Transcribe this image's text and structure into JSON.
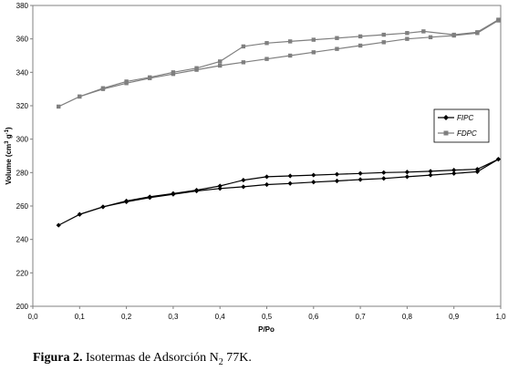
{
  "chart_data": {
    "type": "line",
    "xlabel": "P/Po",
    "ylabel_main": "Volume (cm",
    "ylabel_sup1": "3",
    "ylabel_mid": " g",
    "ylabel_sup2": "-1",
    "ylabel_end": ")",
    "xlim": [
      0,
      1
    ],
    "ylim": [
      200,
      380
    ],
    "x_ticks": [
      "0,0",
      "0,1",
      "0,2",
      "0,3",
      "0,4",
      "0,5",
      "0,6",
      "0,7",
      "0,8",
      "0,9",
      "1,0"
    ],
    "y_ticks": [
      "200",
      "220",
      "240",
      "260",
      "280",
      "300",
      "320",
      "340",
      "360",
      "380"
    ],
    "grid": false,
    "legend_position": "right-middle",
    "series": [
      {
        "name": "FIPC",
        "color": "#000000",
        "marker": "diamond",
        "adsorption": [
          [
            0.055,
            248.5
          ],
          [
            0.1,
            255
          ],
          [
            0.15,
            259.5
          ],
          [
            0.2,
            262.5
          ],
          [
            0.25,
            265
          ],
          [
            0.3,
            267
          ],
          [
            0.35,
            269
          ],
          [
            0.4,
            270.5
          ],
          [
            0.45,
            271.5
          ],
          [
            0.5,
            272.8
          ],
          [
            0.55,
            273.5
          ],
          [
            0.6,
            274.3
          ],
          [
            0.65,
            275
          ],
          [
            0.7,
            275.8
          ],
          [
            0.75,
            276.5
          ],
          [
            0.8,
            277.5
          ],
          [
            0.85,
            278.5
          ],
          [
            0.9,
            279.5
          ],
          [
            0.95,
            280.5
          ],
          [
            0.995,
            288
          ]
        ],
        "desorption": [
          [
            0.995,
            288
          ],
          [
            0.95,
            282
          ],
          [
            0.9,
            281.5
          ],
          [
            0.85,
            280.8
          ],
          [
            0.8,
            280.3
          ],
          [
            0.75,
            280
          ],
          [
            0.7,
            279.5
          ],
          [
            0.65,
            279
          ],
          [
            0.6,
            278.5
          ],
          [
            0.55,
            278
          ],
          [
            0.5,
            277.5
          ],
          [
            0.45,
            275.5
          ],
          [
            0.4,
            272
          ],
          [
            0.35,
            269.5
          ],
          [
            0.3,
            267.5
          ],
          [
            0.25,
            265.5
          ],
          [
            0.2,
            263
          ],
          [
            0.15,
            259.5
          ],
          [
            0.1,
            255
          ]
        ]
      },
      {
        "name": "FDPC",
        "color": "#7f7f7f",
        "marker": "square",
        "adsorption": [
          [
            0.055,
            319.5
          ],
          [
            0.1,
            325.5
          ],
          [
            0.15,
            330
          ],
          [
            0.2,
            333.5
          ],
          [
            0.25,
            336.5
          ],
          [
            0.3,
            339
          ],
          [
            0.35,
            341.5
          ],
          [
            0.4,
            344
          ],
          [
            0.45,
            346
          ],
          [
            0.5,
            348
          ],
          [
            0.55,
            350
          ],
          [
            0.6,
            352
          ],
          [
            0.65,
            354
          ],
          [
            0.7,
            356
          ],
          [
            0.75,
            358
          ],
          [
            0.8,
            360
          ],
          [
            0.85,
            361
          ],
          [
            0.9,
            362
          ],
          [
            0.95,
            363.5
          ],
          [
            0.995,
            371
          ]
        ],
        "desorption": [
          [
            0.995,
            371.5
          ],
          [
            0.95,
            364
          ],
          [
            0.9,
            362.5
          ],
          [
            0.835,
            364.5
          ],
          [
            0.8,
            363.5
          ],
          [
            0.75,
            362.5
          ],
          [
            0.7,
            361.5
          ],
          [
            0.65,
            360.5
          ],
          [
            0.6,
            359.5
          ],
          [
            0.55,
            358.5
          ],
          [
            0.5,
            357.5
          ],
          [
            0.45,
            355.5
          ],
          [
            0.4,
            346.5
          ],
          [
            0.35,
            342.5
          ],
          [
            0.3,
            340
          ],
          [
            0.25,
            337
          ],
          [
            0.2,
            334.5
          ],
          [
            0.15,
            330.5
          ],
          [
            0.1,
            325.5
          ]
        ]
      }
    ]
  },
  "caption": {
    "label": "Figura 2.",
    "text_before": " Isotermas de Adsorción N",
    "subscript": "2",
    "text_after": " 77K."
  }
}
